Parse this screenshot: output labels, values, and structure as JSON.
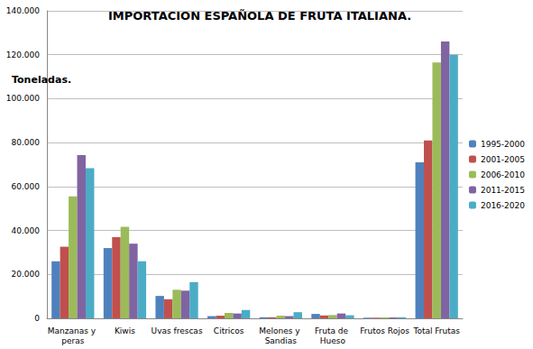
{
  "chart_data": {
    "type": "bar",
    "title": "IMPORTACION ESPAÑOLA DE FRUTA ITALIANA.",
    "y_label": "Toneladas.",
    "categories": [
      "Manzanas y peras",
      "Kiwis",
      "Uvas frescas",
      "Citricos",
      "Melones y Sandias",
      "Fruta de Hueso",
      "Frutos Rojos",
      "Total Frutas"
    ],
    "series": [
      {
        "name": "1995-2000",
        "color": "#4f81bd",
        "values": [
          26000,
          32000,
          10200,
          1000,
          500,
          2000,
          300,
          71000
        ]
      },
      {
        "name": "2001-2005",
        "color": "#c0504d",
        "values": [
          32600,
          37000,
          8700,
          1200,
          500,
          1300,
          300,
          81000
        ]
      },
      {
        "name": "2006-2010",
        "color": "#9bbb59",
        "values": [
          55500,
          41700,
          13000,
          2500,
          1200,
          1500,
          400,
          116500
        ]
      },
      {
        "name": "2011-2015",
        "color": "#8064a2",
        "values": [
          74300,
          34000,
          12600,
          2200,
          1000,
          2200,
          400,
          126000
        ]
      },
      {
        "name": "2016-2020",
        "color": "#4bacc6",
        "values": [
          68400,
          26000,
          16500,
          3800,
          2800,
          1400,
          500,
          120000
        ]
      }
    ],
    "ylim": [
      0,
      140000
    ],
    "yticks": [
      0,
      {
        "value": 20000,
        "label": "20.000"
      },
      {
        "value": 40000,
        "label": "40.000"
      },
      {
        "value": 60000,
        "label": "60.000"
      },
      {
        "value": 80000,
        "label": "80.000"
      },
      {
        "value": 100000,
        "label": "100.000"
      },
      {
        "value": 120000,
        "label": "120.000"
      },
      {
        "value": 140000,
        "label": "140.000"
      }
    ],
    "grid": true,
    "legend": "right"
  }
}
